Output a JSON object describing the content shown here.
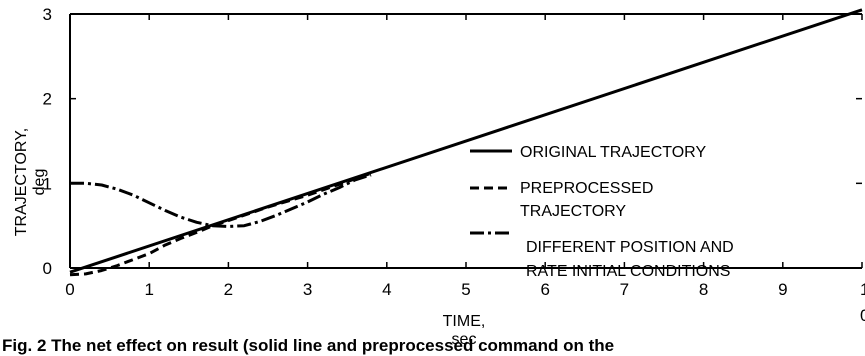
{
  "chart_data": {
    "type": "line",
    "xlabel": [
      "TIME,",
      "sec"
    ],
    "ylabel": [
      "TRAJECTORY,",
      "deg"
    ],
    "xlim": [
      0,
      10
    ],
    "ylim": [
      0,
      3
    ],
    "xticks": [
      "0",
      "1",
      "2",
      "3",
      "4",
      "5",
      "6",
      "7",
      "8",
      "9",
      "1",
      "0"
    ],
    "yticks": [
      "0",
      "1",
      "2",
      "3"
    ],
    "grid": false,
    "legend_placement": "right",
    "series": [
      {
        "name": "ORIGINAL TRAJECTORY",
        "style": "solid",
        "x": [
          0,
          10
        ],
        "y": [
          -0.05,
          3.05
        ]
      },
      {
        "name": "PREPROCESSED TRAJECTORY",
        "style": "dashed",
        "x": [
          0,
          0.2,
          0.4,
          0.6,
          0.8,
          1.0,
          1.2,
          1.4,
          1.6,
          1.8,
          2.0,
          2.5,
          3.0,
          3.5,
          3.8
        ],
        "y": [
          -0.08,
          -0.07,
          -0.03,
          0.03,
          0.1,
          0.17,
          0.27,
          0.35,
          0.42,
          0.5,
          0.56,
          0.72,
          0.86,
          1.02,
          1.12
        ]
      },
      {
        "name": "DIFFERENT POSITION AND RATE INITIAL CONDITIONS",
        "style": "dash-dot",
        "x": [
          0,
          0.2,
          0.4,
          0.6,
          0.8,
          1.0,
          1.2,
          1.4,
          1.6,
          1.8,
          2.0,
          2.2,
          2.4,
          2.6,
          2.8,
          3.0,
          3.2,
          3.4,
          3.6,
          3.8
        ],
        "y": [
          1.0,
          1.0,
          0.98,
          0.93,
          0.86,
          0.77,
          0.68,
          0.6,
          0.54,
          0.5,
          0.49,
          0.5,
          0.55,
          0.62,
          0.7,
          0.78,
          0.87,
          0.95,
          1.04,
          1.1
        ]
      }
    ]
  },
  "legend": [
    {
      "lines": [
        "ORIGINAL TRAJECTORY"
      ]
    },
    {
      "lines": [
        "PREPROCESSED",
        "TRAJECTORY"
      ]
    },
    {
      "lines": [
        "DIFFERENT POSITION AND",
        "RATE INITIAL CONDITIONS"
      ]
    }
  ],
  "caption": "Fig. 2  The net effect on result (solid line and preprocessed command on the"
}
